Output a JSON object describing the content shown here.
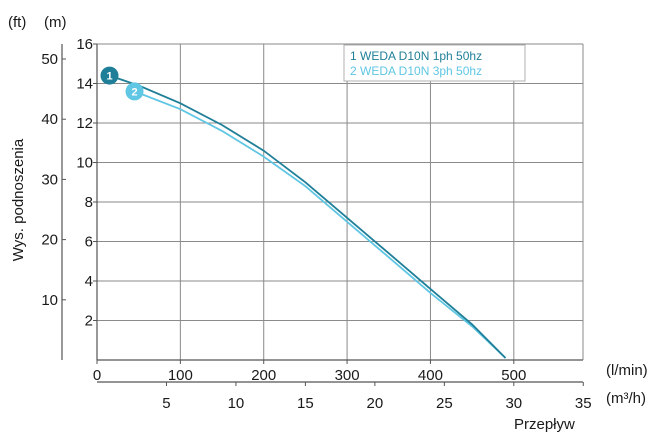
{
  "chart_data": {
    "type": "line",
    "title": "",
    "ylabel": "Wys. podnoszenia",
    "xlabel": "Przepływ",
    "units": {
      "y_left_outer": "(ft)",
      "y_left_inner": "(m)",
      "x_top": "(l/min)",
      "x_bottom": "(m³/h)"
    },
    "x_lmin_ticks": [
      "0",
      "100",
      "200",
      "300",
      "400",
      "500"
    ],
    "x_m3h_ticks": [
      "5",
      "10",
      "15",
      "20",
      "25",
      "30",
      "35"
    ],
    "y_m_ticks": [
      "2",
      "4",
      "6",
      "8",
      "10",
      "12",
      "14",
      "16"
    ],
    "y_ft_ticks": [
      "10",
      "20",
      "30",
      "40",
      "50"
    ],
    "xlim_lmin": [
      0,
      583
    ],
    "ylim_m": [
      0,
      16
    ],
    "grid": true,
    "legend_position": "top-right",
    "series": [
      {
        "name": "1 WEDA D10N 1ph 50hz",
        "marker": "1",
        "color": "#1f7f98",
        "x": [
          15,
          50,
          100,
          150,
          200,
          250,
          300,
          350,
          400,
          450,
          490
        ],
        "y": [
          14.4,
          13.9,
          13.0,
          11.9,
          10.6,
          9.0,
          7.2,
          5.4,
          3.6,
          1.8,
          0.1
        ]
      },
      {
        "name": "2 WEDA D10N 3ph 50hz",
        "marker": "2",
        "color": "#5fc6e3",
        "x": [
          45,
          100,
          150,
          200,
          250,
          300,
          350,
          400,
          450,
          490
        ],
        "y": [
          13.6,
          12.7,
          11.6,
          10.3,
          8.8,
          7.0,
          5.2,
          3.4,
          1.7,
          0.1
        ]
      }
    ]
  }
}
